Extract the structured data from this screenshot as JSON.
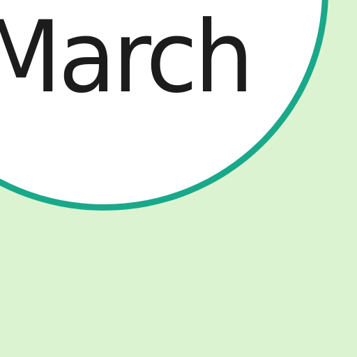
{
  "month": {
    "label": "March"
  },
  "colors": {
    "background": "#dcf3d1",
    "circle_fill": "#ffffff",
    "circle_border": "#1aa88a",
    "text": "#1c1c1c"
  }
}
